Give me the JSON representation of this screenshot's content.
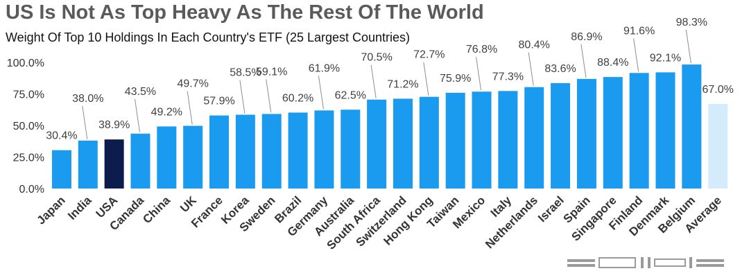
{
  "chart_data": {
    "type": "bar",
    "title": "US Is Not As Top Heavy As The Rest Of The World",
    "subtitle": "Weight Of Top 10 Holdings In Each Country's ETF (25 Largest Countries)",
    "xlabel": "",
    "ylabel": "",
    "ylim": [
      0,
      100
    ],
    "yticks": [
      "0.0%",
      "25.0%",
      "50.0%",
      "75.0%",
      "100.0%"
    ],
    "ytick_values": [
      0,
      25,
      50,
      75,
      100
    ],
    "grid": false,
    "categories": [
      "Japan",
      "India",
      "USA",
      "Canada",
      "China",
      "UK",
      "France",
      "Korea",
      "Sweden",
      "Brazil",
      "Germany",
      "Australia",
      "South Africa",
      "Switzerland",
      "Hong Kong",
      "Taiwan",
      "Mexico",
      "Italy",
      "Netherlands",
      "Israel",
      "Spain",
      "Singapore",
      "Finland",
      "Denmark",
      "Belgium",
      "Average"
    ],
    "values": [
      30.4,
      38.0,
      38.9,
      43.5,
      49.2,
      49.7,
      57.9,
      58.5,
      59.1,
      60.2,
      61.9,
      62.5,
      70.5,
      71.2,
      72.7,
      75.9,
      76.8,
      77.3,
      80.4,
      83.6,
      86.9,
      88.4,
      91.6,
      92.1,
      98.3,
      67.0
    ],
    "labels": [
      "30.4%",
      "38.0%",
      "38.9%",
      "43.5%",
      "49.2%",
      "49.7%",
      "57.9%",
      "58.5%",
      "59.1%",
      "60.2%",
      "61.9%",
      "62.5%",
      "70.5%",
      "71.2%",
      "72.7%",
      "75.9%",
      "76.8%",
      "77.3%",
      "80.4%",
      "83.6%",
      "86.9%",
      "88.4%",
      "91.6%",
      "92.1%",
      "98.3%",
      "67.0%"
    ],
    "label_offsets": [
      1,
      2,
      1,
      2,
      1,
      2,
      1,
      2,
      2,
      1,
      2,
      1,
      2,
      1,
      2,
      1,
      2,
      1,
      2,
      1,
      2,
      1,
      2,
      1,
      2,
      1
    ],
    "colors": {
      "default": "#1a9bf0",
      "highlight": "#0b1c4d",
      "average": "#d4ebfb",
      "label_text": "#404040",
      "leader": "#8c8c8c",
      "axis_text": "#333333"
    },
    "highlight_category": "USA",
    "average_category": "Average"
  }
}
